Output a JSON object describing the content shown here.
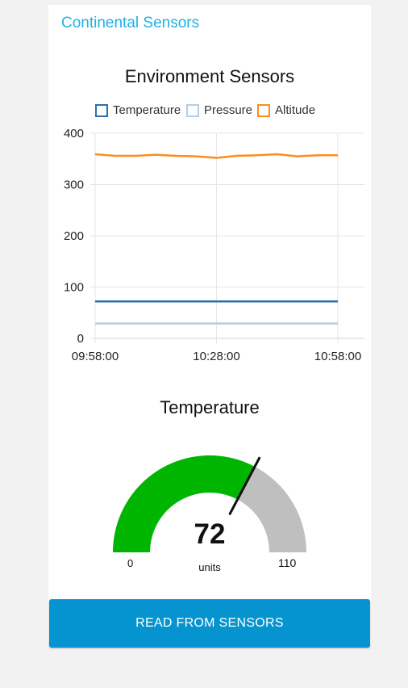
{
  "group": {
    "title": "Continental Sensors"
  },
  "chart": {
    "title": "Environment Sensors"
  },
  "chart_data": {
    "type": "line",
    "title": "Environment Sensors",
    "x_ticks": [
      "09:58:00",
      "10:28:00",
      "10:58:00"
    ],
    "ylim": [
      0,
      400
    ],
    "y_ticks": [
      0,
      100,
      200,
      300,
      400
    ],
    "grid": true,
    "legend_position": "top",
    "x": [
      "09:58:00",
      "10:03:00",
      "10:08:00",
      "10:13:00",
      "10:18:00",
      "10:23:00",
      "10:28:00",
      "10:33:00",
      "10:38:00",
      "10:43:00",
      "10:48:00",
      "10:53:00",
      "10:58:00"
    ],
    "series": [
      {
        "name": "Temperature",
        "color": "#2c6fac",
        "values": [
          72,
          72,
          72,
          72,
          72,
          72,
          72,
          72,
          72,
          72,
          72,
          72,
          72
        ]
      },
      {
        "name": "Pressure",
        "color": "#b3cde8",
        "values": [
          29,
          29,
          29,
          29,
          29,
          29,
          29,
          29,
          29,
          29,
          29,
          29,
          29
        ]
      },
      {
        "name": "Altitude",
        "color": "#ff8c1a",
        "values": [
          359,
          356,
          356,
          358,
          356,
          355,
          352,
          356,
          357,
          359,
          355,
          357,
          357
        ]
      }
    ]
  },
  "gauge": {
    "title": "Temperature",
    "value": 72,
    "min": 0,
    "max": 110,
    "units": "units",
    "fill_color": "#00b500",
    "track_color": "#bfbfbf",
    "needle_color": "#111111"
  },
  "button": {
    "label": "READ FROM SENSORS",
    "color": "#0594cf"
  }
}
